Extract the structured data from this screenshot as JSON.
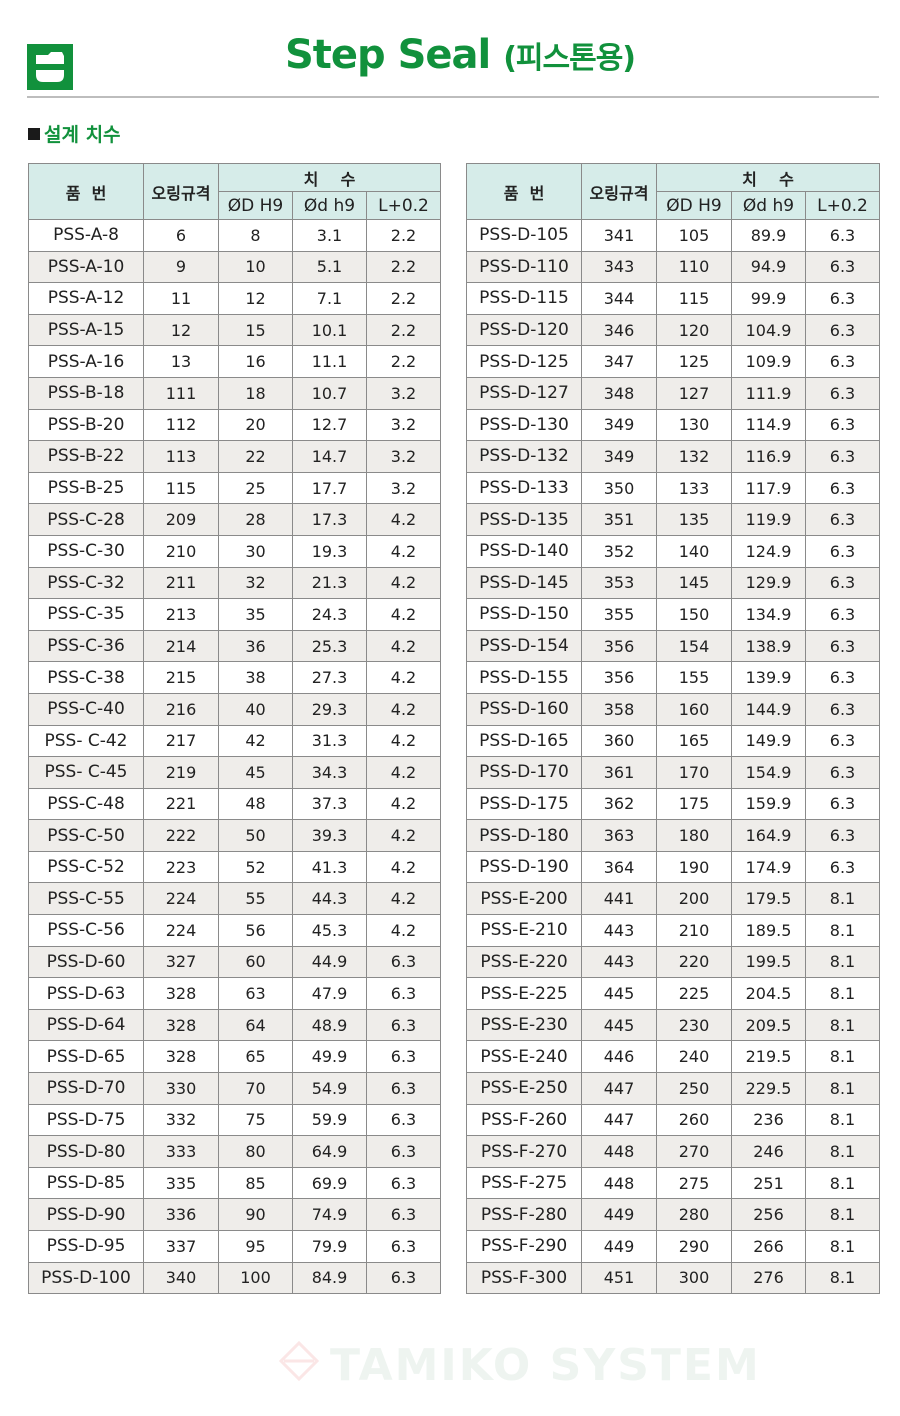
{
  "header": {
    "title": "Step Seal",
    "title_suffix": "(피스톤용)",
    "accent": "#11913c"
  },
  "section_title": "설계 치수",
  "table_headers": {
    "part_no": "품  번",
    "oring": "오링규격",
    "dims": "치    수",
    "d_outer": "ØD H9",
    "d_inner": "Ød h9",
    "length": "L+0.2"
  },
  "left_table": [
    [
      "PSS-A-8",
      "6",
      "8",
      "3.1",
      "2.2"
    ],
    [
      "PSS-A-10",
      "9",
      "10",
      "5.1",
      "2.2"
    ],
    [
      "PSS-A-12",
      "11",
      "12",
      "7.1",
      "2.2"
    ],
    [
      "PSS-A-15",
      "12",
      "15",
      "10.1",
      "2.2"
    ],
    [
      "PSS-A-16",
      "13",
      "16",
      "11.1",
      "2.2"
    ],
    [
      "PSS-B-18",
      "111",
      "18",
      "10.7",
      "3.2"
    ],
    [
      "PSS-B-20",
      "112",
      "20",
      "12.7",
      "3.2"
    ],
    [
      "PSS-B-22",
      "113",
      "22",
      "14.7",
      "3.2"
    ],
    [
      "PSS-B-25",
      "115",
      "25",
      "17.7",
      "3.2"
    ],
    [
      "PSS-C-28",
      "209",
      "28",
      "17.3",
      "4.2"
    ],
    [
      "PSS-C-30",
      "210",
      "30",
      "19.3",
      "4.2"
    ],
    [
      "PSS-C-32",
      "211",
      "32",
      "21.3",
      "4.2"
    ],
    [
      "PSS-C-35",
      "213",
      "35",
      "24.3",
      "4.2"
    ],
    [
      "PSS-C-36",
      "214",
      "36",
      "25.3",
      "4.2"
    ],
    [
      "PSS-C-38",
      "215",
      "38",
      "27.3",
      "4.2"
    ],
    [
      "PSS-C-40",
      "216",
      "40",
      "29.3",
      "4.2"
    ],
    [
      "PSS- C-42",
      "217",
      "42",
      "31.3",
      "4.2"
    ],
    [
      "PSS- C-45",
      "219",
      "45",
      "34.3",
      "4.2"
    ],
    [
      "PSS-C-48",
      "221",
      "48",
      "37.3",
      "4.2"
    ],
    [
      "PSS-C-50",
      "222",
      "50",
      "39.3",
      "4.2"
    ],
    [
      "PSS-C-52",
      "223",
      "52",
      "41.3",
      "4.2"
    ],
    [
      "PSS-C-55",
      "224",
      "55",
      "44.3",
      "4.2"
    ],
    [
      "PSS-C-56",
      "224",
      "56",
      "45.3",
      "4.2"
    ],
    [
      "PSS-D-60",
      "327",
      "60",
      "44.9",
      "6.3"
    ],
    [
      "PSS-D-63",
      "328",
      "63",
      "47.9",
      "6.3"
    ],
    [
      "PSS-D-64",
      "328",
      "64",
      "48.9",
      "6.3"
    ],
    [
      "PSS-D-65",
      "328",
      "65",
      "49.9",
      "6.3"
    ],
    [
      "PSS-D-70",
      "330",
      "70",
      "54.9",
      "6.3"
    ],
    [
      "PSS-D-75",
      "332",
      "75",
      "59.9",
      "6.3"
    ],
    [
      "PSS-D-80",
      "333",
      "80",
      "64.9",
      "6.3"
    ],
    [
      "PSS-D-85",
      "335",
      "85",
      "69.9",
      "6.3"
    ],
    [
      "PSS-D-90",
      "336",
      "90",
      "74.9",
      "6.3"
    ],
    [
      "PSS-D-95",
      "337",
      "95",
      "79.9",
      "6.3"
    ],
    [
      "PSS-D-100",
      "340",
      "100",
      "84.9",
      "6.3"
    ]
  ],
  "right_table": [
    [
      "PSS-D-105",
      "341",
      "105",
      "89.9",
      "6.3"
    ],
    [
      "PSS-D-110",
      "343",
      "110",
      "94.9",
      "6.3"
    ],
    [
      "PSS-D-115",
      "344",
      "115",
      "99.9",
      "6.3"
    ],
    [
      "PSS-D-120",
      "346",
      "120",
      "104.9",
      "6.3"
    ],
    [
      "PSS-D-125",
      "347",
      "125",
      "109.9",
      "6.3"
    ],
    [
      "PSS-D-127",
      "348",
      "127",
      "111.9",
      "6.3"
    ],
    [
      "PSS-D-130",
      "349",
      "130",
      "114.9",
      "6.3"
    ],
    [
      "PSS-D-132",
      "349",
      "132",
      "116.9",
      "6.3"
    ],
    [
      "PSS-D-133",
      "350",
      "133",
      "117.9",
      "6.3"
    ],
    [
      "PSS-D-135",
      "351",
      "135",
      "119.9",
      "6.3"
    ],
    [
      "PSS-D-140",
      "352",
      "140",
      "124.9",
      "6.3"
    ],
    [
      "PSS-D-145",
      "353",
      "145",
      "129.9",
      "6.3"
    ],
    [
      "PSS-D-150",
      "355",
      "150",
      "134.9",
      "6.3"
    ],
    [
      "PSS-D-154",
      "356",
      "154",
      "138.9",
      "6.3"
    ],
    [
      "PSS-D-155",
      "356",
      "155",
      "139.9",
      "6.3"
    ],
    [
      "PSS-D-160",
      "358",
      "160",
      "144.9",
      "6.3"
    ],
    [
      "PSS-D-165",
      "360",
      "165",
      "149.9",
      "6.3"
    ],
    [
      "PSS-D-170",
      "361",
      "170",
      "154.9",
      "6.3"
    ],
    [
      "PSS-D-175",
      "362",
      "175",
      "159.9",
      "6.3"
    ],
    [
      "PSS-D-180",
      "363",
      "180",
      "164.9",
      "6.3"
    ],
    [
      "PSS-D-190",
      "364",
      "190",
      "174.9",
      "6.3"
    ],
    [
      "PSS-E-200",
      "441",
      "200",
      "179.5",
      "8.1"
    ],
    [
      "PSS-E-210",
      "443",
      "210",
      "189.5",
      "8.1"
    ],
    [
      "PSS-E-220",
      "443",
      "220",
      "199.5",
      "8.1"
    ],
    [
      "PSS-E-225",
      "445",
      "225",
      "204.5",
      "8.1"
    ],
    [
      "PSS-E-230",
      "445",
      "230",
      "209.5",
      "8.1"
    ],
    [
      "PSS-E-240",
      "446",
      "240",
      "219.5",
      "8.1"
    ],
    [
      "PSS-E-250",
      "447",
      "250",
      "229.5",
      "8.1"
    ],
    [
      "PSS-F-260",
      "447",
      "260",
      "236",
      "8.1"
    ],
    [
      "PSS-F-270",
      "448",
      "270",
      "246",
      "8.1"
    ],
    [
      "PSS-F-275",
      "448",
      "275",
      "251",
      "8.1"
    ],
    [
      "PSS-F-280",
      "449",
      "280",
      "256",
      "8.1"
    ],
    [
      "PSS-F-290",
      "449",
      "290",
      "266",
      "8.1"
    ],
    [
      "PSS-F-300",
      "451",
      "300",
      "276",
      "8.1"
    ]
  ],
  "watermark": "TAMIKO SYSTEM"
}
